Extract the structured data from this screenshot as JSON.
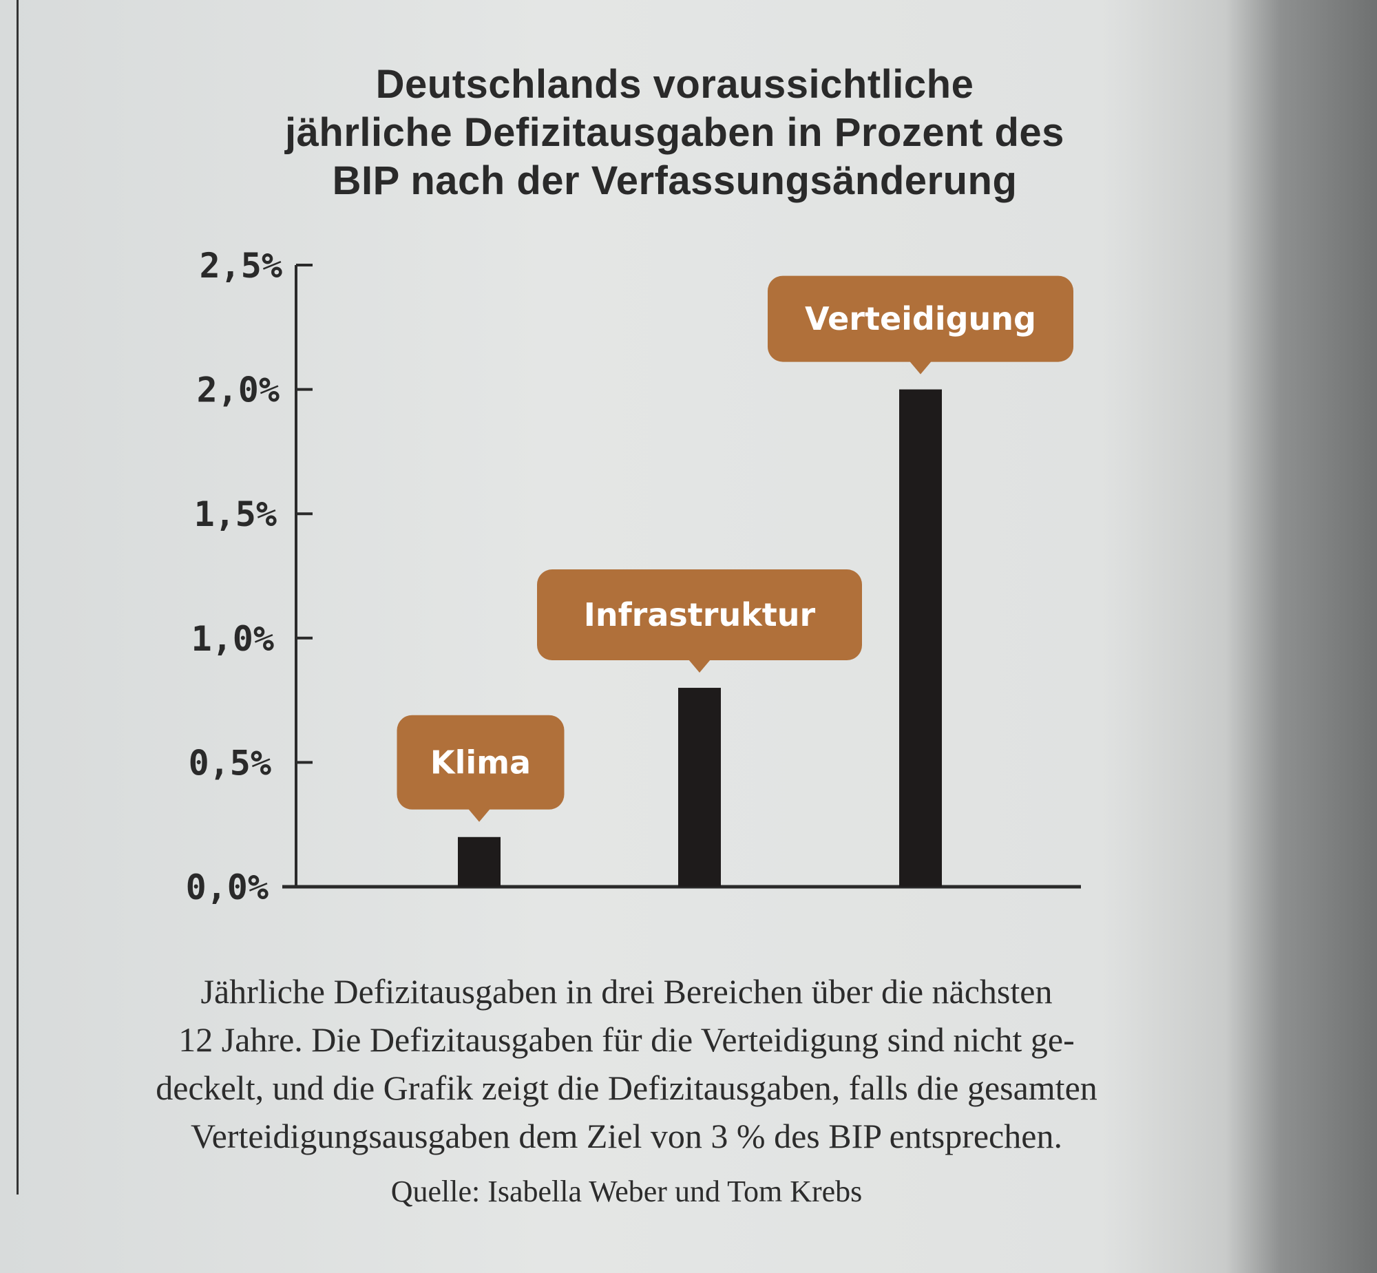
{
  "chart_data": {
    "type": "bar",
    "title_lines": [
      "Deutschlands voraussichtliche",
      "jährliche Defizitausgaben in Prozent des",
      "BIP nach der Verfassungsänderung"
    ],
    "categories": [
      "Klima",
      "Infrastruktur",
      "Verteidigung"
    ],
    "values": [
      0.2,
      0.8,
      2.0
    ],
    "unit": "% des BIP",
    "ylim": [
      0,
      2.5
    ],
    "yticks": [
      0,
      0.5,
      1.0,
      1.5,
      2.0,
      2.5
    ],
    "ytick_labels": [
      "0,0%",
      "0,5%",
      "1,0%",
      "1,5%",
      "2,0%",
      "2,5%"
    ],
    "xlabel": "",
    "ylabel": "",
    "grid": false,
    "colors": {
      "bar": "#1e1b1b",
      "label_bubble": "#b0703a",
      "label_text": "#ffffff"
    }
  },
  "caption_lines": [
    "Jährliche Defizitausgaben in drei Bereichen über die nächsten",
    "12 Jahre. Die Defizitausgaben für die Verteidigung sind nicht ge-",
    "deckelt, und die Grafik zeigt die Defizitausgaben, falls die gesamten",
    "Verteidigungsausgaben dem Ziel von 3 % des BIP entsprechen."
  ],
  "source": "Quelle: Isabella Weber und Tom Krebs"
}
